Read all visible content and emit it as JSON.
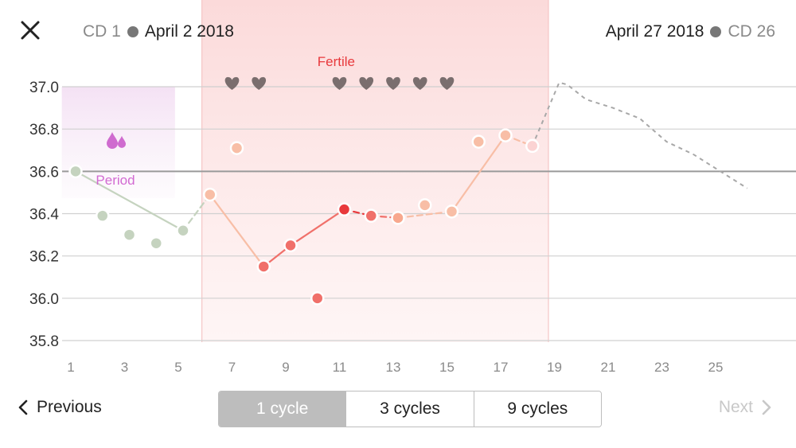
{
  "header": {
    "start_cd": "CD 1",
    "start_date": "April 2 2018",
    "end_date": "April 27 2018",
    "end_cd": "CD 26",
    "close_icon": "close-icon"
  },
  "chart_data": {
    "type": "line",
    "ylim": [
      35.8,
      37.0
    ],
    "yticks": [
      "37.0",
      "36.8",
      "36.6",
      "36.4",
      "36.2",
      "36.0",
      "35.8"
    ],
    "xlim": [
      1,
      27
    ],
    "xticks": [
      "1",
      "3",
      "5",
      "7",
      "9",
      "11",
      "13",
      "15",
      "17",
      "19",
      "21",
      "23",
      "25"
    ],
    "coverline": 36.6,
    "period_label": "Period",
    "period_range": [
      0.5,
      4.7
    ],
    "period_icon": "drops-icon",
    "fertile_label": "Fertile",
    "fertile_range": [
      5.7,
      18.6
    ],
    "heart_days": [
      7,
      8,
      11,
      12,
      13,
      14,
      15
    ],
    "heart_icon": "heart-icon",
    "points": [
      {
        "x": 1,
        "y": 36.6,
        "color": "#c5d3bf"
      },
      {
        "x": 2,
        "y": 36.39,
        "color": "#c5d3bf"
      },
      {
        "x": 3,
        "y": 36.3,
        "color": "#c5d3bf"
      },
      {
        "x": 4,
        "y": 36.26,
        "color": "#c5d3bf"
      },
      {
        "x": 5,
        "y": 36.32,
        "color": "#c5d3bf"
      },
      {
        "x": 6,
        "y": 36.49,
        "color": "#f8bea6"
      },
      {
        "x": 7,
        "y": 36.71,
        "color": "#f8bea6"
      },
      {
        "x": 8,
        "y": 36.15,
        "color": "#f0706a"
      },
      {
        "x": 9,
        "y": 36.25,
        "color": "#f0706a"
      },
      {
        "x": 10,
        "y": 36.0,
        "color": "#f0706a"
      },
      {
        "x": 11,
        "y": 36.42,
        "color": "#e8393c"
      },
      {
        "x": 12,
        "y": 36.39,
        "color": "#f0706a"
      },
      {
        "x": 13,
        "y": 36.38,
        "color": "#f8a88e"
      },
      {
        "x": 14,
        "y": 36.44,
        "color": "#f8bea6"
      },
      {
        "x": 15,
        "y": 36.41,
        "color": "#f8bea6"
      },
      {
        "x": 16,
        "y": 36.74,
        "color": "#f8bea6"
      },
      {
        "x": 17,
        "y": 36.77,
        "color": "#f8bea6"
      },
      {
        "x": 18,
        "y": 36.72,
        "color": "#fbd3d3"
      }
    ],
    "segments": [
      {
        "from": 0,
        "to": 4,
        "color": "#c5d3bf",
        "dashed": false
      },
      {
        "from": 4,
        "to": 5,
        "color": "#c5d3bf",
        "dashed": true
      },
      {
        "from": 5,
        "to": 7,
        "color": "#f8bea6",
        "dashed": false
      },
      {
        "from": 7,
        "to": 8,
        "color": "#f0706a",
        "dashed": false
      },
      {
        "from": 8,
        "to": 10,
        "color": "#f0706a",
        "dashed": false
      },
      {
        "from": 10,
        "to": 11,
        "color": "#e8393c",
        "dashed": true
      },
      {
        "from": 11,
        "to": 12,
        "color": "#f0706a",
        "dashed": true
      },
      {
        "from": 12,
        "to": 14,
        "color": "#f8bea6",
        "dashed": true
      },
      {
        "from": 14,
        "to": 16,
        "color": "#f8bea6",
        "dashed": false
      },
      {
        "from": 16,
        "to": 17,
        "color": "#f8bea6",
        "dashed": true
      }
    ],
    "prediction": [
      {
        "x": 18,
        "y": 36.72
      },
      {
        "x": 19.0,
        "y": 37.02
      },
      {
        "x": 19.3,
        "y": 37.01
      },
      {
        "x": 20,
        "y": 36.94
      },
      {
        "x": 21,
        "y": 36.9
      },
      {
        "x": 22,
        "y": 36.85
      },
      {
        "x": 23,
        "y": 36.74
      },
      {
        "x": 24,
        "y": 36.68
      },
      {
        "x": 25,
        "y": 36.6
      },
      {
        "x": 26,
        "y": 36.52
      }
    ]
  },
  "footer": {
    "previous_label": "Previous",
    "next_label": "Next",
    "segments": [
      "1 cycle",
      "3 cycles",
      "9 cycles"
    ],
    "active_segment": "1 cycle",
    "chevron_left_icon": "chevron-left-icon",
    "chevron_right_icon": "chevron-right-icon"
  }
}
